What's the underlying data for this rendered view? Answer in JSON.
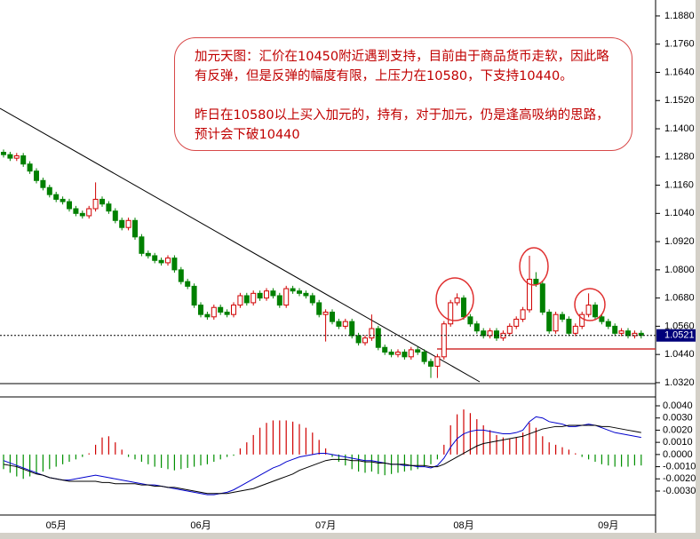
{
  "chart_data": [
    {
      "type": "candlestick",
      "annotation": [
        "加元天图：汇价在10450附近遇到支持，目前由于商品货币走软，因此略有反弹，但是反弹的幅度有限，上压力在10580，下支持10440。",
        "昨日在10580以上买入加元的，持有，对于加元，仍是逢高吸纳的思路，预计会下破10440"
      ],
      "categories": [
        null,
        null,
        null,
        null,
        null,
        null,
        null,
        null,
        "05月",
        null,
        null,
        null,
        null,
        null,
        null,
        null,
        null,
        null,
        null,
        null,
        null,
        null,
        null,
        null,
        null,
        null,
        null,
        null,
        null,
        null,
        "06月",
        null,
        null,
        null,
        null,
        null,
        null,
        null,
        null,
        null,
        null,
        null,
        null,
        null,
        null,
        null,
        null,
        null,
        null,
        "07月",
        null,
        null,
        null,
        null,
        null,
        null,
        null,
        null,
        null,
        null,
        null,
        null,
        null,
        null,
        null,
        null,
        null,
        null,
        null,
        null,
        "08月",
        null,
        null,
        null,
        null,
        null,
        null,
        null,
        null,
        null,
        null,
        null,
        null,
        null,
        null,
        null,
        null,
        null,
        null,
        null,
        null,
        null,
        "09月",
        null,
        null,
        null,
        null,
        null
      ],
      "ohlc": [
        [
          1.13,
          1.1312,
          1.1278,
          1.129
        ],
        [
          1.129,
          1.1302,
          1.1263,
          1.1275
        ],
        [
          1.1275,
          1.1297,
          1.1263,
          1.1285
        ],
        [
          1.1285,
          1.1297,
          1.1238,
          1.125
        ],
        [
          1.125,
          1.1262,
          1.1208,
          1.122
        ],
        [
          1.122,
          1.1232,
          1.1168,
          1.118
        ],
        [
          1.118,
          1.1192,
          1.1138,
          1.115
        ],
        [
          1.115,
          1.1162,
          1.1108,
          1.112
        ],
        [
          1.112,
          1.1132,
          1.1088,
          1.11
        ],
        [
          1.11,
          1.1112,
          1.1078,
          1.109
        ],
        [
          1.109,
          1.1102,
          1.1048,
          1.106
        ],
        [
          1.106,
          1.1072,
          1.1028,
          1.104
        ],
        [
          1.104,
          1.1052,
          1.1018,
          1.103
        ],
        [
          1.103,
          1.1072,
          1.1018,
          1.106
        ],
        [
          1.106,
          1.1172,
          1.1048,
          1.11
        ],
        [
          1.11,
          1.1112,
          1.1068,
          1.108
        ],
        [
          1.108,
          1.1092,
          1.1038,
          1.105
        ],
        [
          1.105,
          1.1062,
          1.0998,
          1.101
        ],
        [
          1.101,
          1.1022,
          1.0968,
          1.098
        ],
        [
          1.098,
          1.1022,
          1.0968,
          1.101
        ],
        [
          1.101,
          1.1022,
          1.0928,
          1.094
        ],
        [
          1.094,
          1.0952,
          1.0858,
          1.087
        ],
        [
          1.087,
          1.0882,
          1.0848,
          1.086
        ],
        [
          1.086,
          1.0872,
          1.0828,
          1.084
        ],
        [
          1.084,
          1.0852,
          1.0818,
          1.083
        ],
        [
          1.083,
          1.0862,
          1.0818,
          1.085
        ],
        [
          1.085,
          1.0862,
          1.0788,
          1.08
        ],
        [
          1.08,
          1.0812,
          1.0738,
          1.075
        ],
        [
          1.075,
          1.0762,
          1.0718,
          1.073
        ],
        [
          1.073,
          1.0742,
          1.0638,
          1.065
        ],
        [
          1.065,
          1.0662,
          1.0598,
          1.061
        ],
        [
          1.061,
          1.0622,
          1.0588,
          1.06
        ],
        [
          1.06,
          1.0652,
          1.0588,
          1.064
        ],
        [
          1.064,
          1.0652,
          1.0608,
          1.062
        ],
        [
          1.062,
          1.0632,
          1.0598,
          1.061
        ],
        [
          1.061,
          1.0662,
          1.0598,
          1.065
        ],
        [
          1.065,
          1.0702,
          1.0638,
          1.069
        ],
        [
          1.069,
          1.0702,
          1.0648,
          1.066
        ],
        [
          1.066,
          1.0712,
          1.0648,
          1.07
        ],
        [
          1.07,
          1.0712,
          1.0668,
          1.068
        ],
        [
          1.068,
          1.0722,
          1.0668,
          1.071
        ],
        [
          1.071,
          1.0722,
          1.0678,
          1.069
        ],
        [
          1.069,
          1.0702,
          1.0638,
          1.065
        ],
        [
          1.065,
          1.0732,
          1.0638,
          1.072
        ],
        [
          1.072,
          1.0732,
          1.0698,
          1.071
        ],
        [
          1.071,
          1.0722,
          1.0688,
          1.07
        ],
        [
          1.07,
          1.0712,
          1.0678,
          1.069
        ],
        [
          1.069,
          1.0702,
          1.0648,
          1.066
        ],
        [
          1.066,
          1.0672,
          1.0598,
          1.061
        ],
        [
          1.061,
          1.0632,
          1.0495,
          1.062
        ],
        [
          1.062,
          1.0632,
          1.0568,
          1.058
        ],
        [
          1.058,
          1.0592,
          1.0548,
          1.056
        ],
        [
          1.056,
          1.0592,
          1.0548,
          1.058
        ],
        [
          1.058,
          1.0592,
          1.0508,
          1.052
        ],
        [
          1.052,
          1.0532,
          1.0478,
          1.049
        ],
        [
          1.049,
          1.0522,
          1.0478,
          1.051
        ],
        [
          1.051,
          1.061,
          1.0498,
          1.055
        ],
        [
          1.055,
          1.0562,
          1.0458,
          1.047
        ],
        [
          1.047,
          1.0482,
          1.0438,
          1.045
        ],
        [
          1.045,
          1.0462,
          1.0428,
          1.044
        ],
        [
          1.044,
          1.0462,
          1.0428,
          1.045
        ],
        [
          1.045,
          1.0462,
          1.0418,
          1.043
        ],
        [
          1.043,
          1.0472,
          1.0418,
          1.046
        ],
        [
          1.046,
          1.0472,
          1.0438,
          1.045
        ],
        [
          1.045,
          1.0462,
          1.0398,
          1.041
        ],
        [
          1.041,
          1.0422,
          1.034,
          1.039
        ],
        [
          1.039,
          1.0442,
          1.034,
          1.043
        ],
        [
          1.043,
          1.0582,
          1.0418,
          1.057
        ],
        [
          1.057,
          1.0672,
          1.0558,
          1.066
        ],
        [
          1.066,
          1.07,
          1.0648,
          1.068
        ],
        [
          1.068,
          1.0692,
          1.0588,
          1.06
        ],
        [
          1.06,
          1.0612,
          1.0558,
          1.057
        ],
        [
          1.057,
          1.0582,
          1.0528,
          1.054
        ],
        [
          1.054,
          1.0552,
          1.0508,
          1.052
        ],
        [
          1.052,
          1.0552,
          1.0508,
          1.054
        ],
        [
          1.054,
          1.0552,
          1.0498,
          1.051
        ],
        [
          1.051,
          1.0542,
          1.0498,
          1.053
        ],
        [
          1.053,
          1.0572,
          1.0518,
          1.056
        ],
        [
          1.056,
          1.0602,
          1.0548,
          1.059
        ],
        [
          1.059,
          1.0642,
          1.0578,
          1.063
        ],
        [
          1.063,
          1.086,
          1.0618,
          1.076
        ],
        [
          1.076,
          1.079,
          1.0728,
          1.074
        ],
        [
          1.074,
          1.0752,
          1.0608,
          1.062
        ],
        [
          1.062,
          1.0632,
          1.0528,
          1.054
        ],
        [
          1.054,
          1.0622,
          1.0528,
          1.061
        ],
        [
          1.061,
          1.0622,
          1.0578,
          1.059
        ],
        [
          1.059,
          1.0602,
          1.0518,
          1.053
        ],
        [
          1.053,
          1.0572,
          1.0518,
          1.056
        ],
        [
          1.056,
          1.0622,
          1.0548,
          1.061
        ],
        [
          1.061,
          1.07,
          1.0598,
          1.065
        ],
        [
          1.065,
          1.0662,
          1.0588,
          1.06
        ],
        [
          1.06,
          1.0612,
          1.0568,
          1.058
        ],
        [
          1.058,
          1.0592,
          1.0548,
          1.056
        ],
        [
          1.056,
          1.0572,
          1.0518,
          1.053
        ],
        [
          1.053,
          1.0552,
          1.0518,
          1.054
        ],
        [
          1.054,
          1.0552,
          1.0508,
          1.052
        ],
        [
          1.052,
          1.0542,
          1.0508,
          1.053
        ],
        [
          1.053,
          1.0542,
          1.0508,
          1.0521
        ]
      ],
      "up_color": "#d00000",
      "down_color": "#008000",
      "last_price": 1.0521,
      "ylim": [
        1.0316,
        1.191
      ],
      "yticks": [
        {
          "value": 1.188,
          "label": "1.1880"
        },
        {
          "value": 1.176,
          "label": "1.1760"
        },
        {
          "value": 1.164,
          "label": "1.1640"
        },
        {
          "value": 1.152,
          "label": "1.1520"
        },
        {
          "value": 1.14,
          "label": "1.1400"
        },
        {
          "value": 1.128,
          "label": "1.1280"
        },
        {
          "value": 1.116,
          "label": "1.1160"
        },
        {
          "value": 1.104,
          "label": "1.1040"
        },
        {
          "value": 1.092,
          "label": "1.0920"
        },
        {
          "value": 1.08,
          "label": "1.0800"
        },
        {
          "value": 1.068,
          "label": "1.0680"
        },
        {
          "value": 1.056,
          "label": "1.0560"
        },
        {
          "value": 1.044,
          "label": "1.0440"
        },
        {
          "value": 1.032,
          "label": "1.0320"
        }
      ]
    },
    {
      "type": "macd",
      "values": [
        -0.0012,
        -0.0015,
        -0.0018,
        -0.002,
        -0.0018,
        -0.0016,
        -0.0014,
        -0.0012,
        -0.001,
        -0.0008,
        -0.0006,
        -0.0004,
        -0.0002,
        0.0001,
        0.0008,
        0.0014,
        0.0015,
        0.001,
        0.0004,
        -0.0002,
        -0.0004,
        -0.0006,
        -0.0008,
        -0.001,
        -0.0011,
        -0.0012,
        -0.0013,
        -0.0012,
        -0.0011,
        -0.001,
        -0.0009,
        -0.0008,
        -0.0006,
        -0.0004,
        -0.0002,
        -0.0001,
        0.0005,
        0.001,
        0.0016,
        0.0022,
        0.0026,
        0.0028,
        0.0028,
        0.0028,
        0.0027,
        0.0025,
        0.0022,
        0.0018,
        0.0012,
        0.0005,
        -0.0002,
        -0.0006,
        -0.0009,
        -0.0012,
        -0.0014,
        -0.0015,
        -0.0014,
        -0.0016,
        -0.0017,
        -0.0016,
        -0.0015,
        -0.0014,
        -0.0013,
        -0.0012,
        -0.001,
        -0.0008,
        -0.0004,
        0.0008,
        0.0024,
        0.0033,
        0.0037,
        0.0034,
        0.0029,
        0.0024,
        0.002,
        0.0016,
        0.0014,
        0.0013,
        0.0014,
        0.0018,
        0.0026,
        0.0022,
        0.0015,
        0.001,
        0.0008,
        0.0006,
        0.0004,
        0.0001,
        -0.0002,
        -0.0004,
        -0.0006,
        -0.0008,
        -0.0009,
        -0.001,
        -0.001,
        -0.001,
        -0.0009,
        -0.0009
      ],
      "pos_color": "#d00000",
      "neg_color": "#009000",
      "lines": [
        {
          "color": "#0000cc",
          "values": [
            -0.0005,
            -0.0007,
            -0.0009,
            -0.0011,
            -0.0013,
            -0.0015,
            -0.0017,
            -0.0019,
            -0.002,
            -0.0021,
            -0.0021,
            -0.002,
            -0.0019,
            -0.0018,
            -0.0017,
            -0.0018,
            -0.0019,
            -0.002,
            -0.0021,
            -0.0022,
            -0.0023,
            -0.0024,
            -0.0025,
            -0.0025,
            -0.0026,
            -0.0027,
            -0.0028,
            -0.0029,
            -0.003,
            -0.0031,
            -0.0032,
            -0.0033,
            -0.0033,
            -0.0032,
            -0.0031,
            -0.0029,
            -0.0026,
            -0.0023,
            -0.002,
            -0.0017,
            -0.0014,
            -0.0011,
            -0.0009,
            -0.0006,
            -0.0004,
            -0.0002,
            -0.0001,
            0.0,
            0.0001,
            0.0001,
            0.0,
            -0.0001,
            -0.0002,
            -0.0003,
            -0.0004,
            -0.0005,
            -0.0005,
            -0.0006,
            -0.0007,
            -0.0008,
            -0.0008,
            -0.0009,
            -0.0009,
            -0.001,
            -0.001,
            -0.0011,
            -0.0009,
            -0.0003,
            0.0006,
            0.0013,
            0.0017,
            0.0019,
            0.002,
            0.002,
            0.0019,
            0.0018,
            0.0017,
            0.0017,
            0.0018,
            0.002,
            0.0027,
            0.0031,
            0.003,
            0.0027,
            0.0026,
            0.0025,
            0.0023,
            0.0023,
            0.0024,
            0.0025,
            0.0024,
            0.0022,
            0.002,
            0.0018,
            0.0017,
            0.0016,
            0.0015,
            0.0014
          ]
        },
        {
          "color": "#000000",
          "values": [
            -0.0008,
            -0.0009,
            -0.001,
            -0.0012,
            -0.0014,
            -0.0016,
            -0.0017,
            -0.0019,
            -0.002,
            -0.0021,
            -0.0022,
            -0.0022,
            -0.0022,
            -0.0022,
            -0.0022,
            -0.0023,
            -0.0023,
            -0.0024,
            -0.0024,
            -0.0024,
            -0.0024,
            -0.0025,
            -0.0025,
            -0.0026,
            -0.0026,
            -0.0027,
            -0.0027,
            -0.0028,
            -0.0029,
            -0.003,
            -0.0031,
            -0.0032,
            -0.0032,
            -0.0032,
            -0.0032,
            -0.0031,
            -0.003,
            -0.0029,
            -0.0028,
            -0.0026,
            -0.0024,
            -0.0022,
            -0.002,
            -0.0018,
            -0.0016,
            -0.0013,
            -0.0011,
            -0.0009,
            -0.0007,
            -0.0005,
            -0.0004,
            -0.0004,
            -0.0004,
            -0.0005,
            -0.0005,
            -0.0006,
            -0.0006,
            -0.0007,
            -0.0007,
            -0.0008,
            -0.0008,
            -0.0008,
            -0.0009,
            -0.0009,
            -0.0009,
            -0.001,
            -0.001,
            -0.0008,
            -0.0005,
            -0.0002,
            0.0001,
            0.0004,
            0.0007,
            0.0009,
            0.001,
            0.0011,
            0.0012,
            0.0013,
            0.0014,
            0.0015,
            0.0017,
            0.0019,
            0.0021,
            0.0022,
            0.0023,
            0.0023,
            0.0024,
            0.0024,
            0.0024,
            0.0024,
            0.0024,
            0.0023,
            0.0023,
            0.0022,
            0.0021,
            0.002,
            0.0019,
            0.0018
          ]
        }
      ],
      "ylim": [
        -0.00497,
        0.00473
      ],
      "yticks": [
        {
          "value": 0.004,
          "label": "0.0040"
        },
        {
          "value": 0.003,
          "label": "0.0030"
        },
        {
          "value": 0.002,
          "label": "0.0020"
        },
        {
          "value": 0.001,
          "label": "0.0010"
        },
        {
          "value": 0,
          "label": "0.0000"
        },
        {
          "value": -0.001,
          "label": "-0.0010"
        },
        {
          "value": -0.002,
          "label": "-0.0020"
        },
        {
          "value": -0.003,
          "label": "-0.0030"
        }
      ]
    }
  ]
}
